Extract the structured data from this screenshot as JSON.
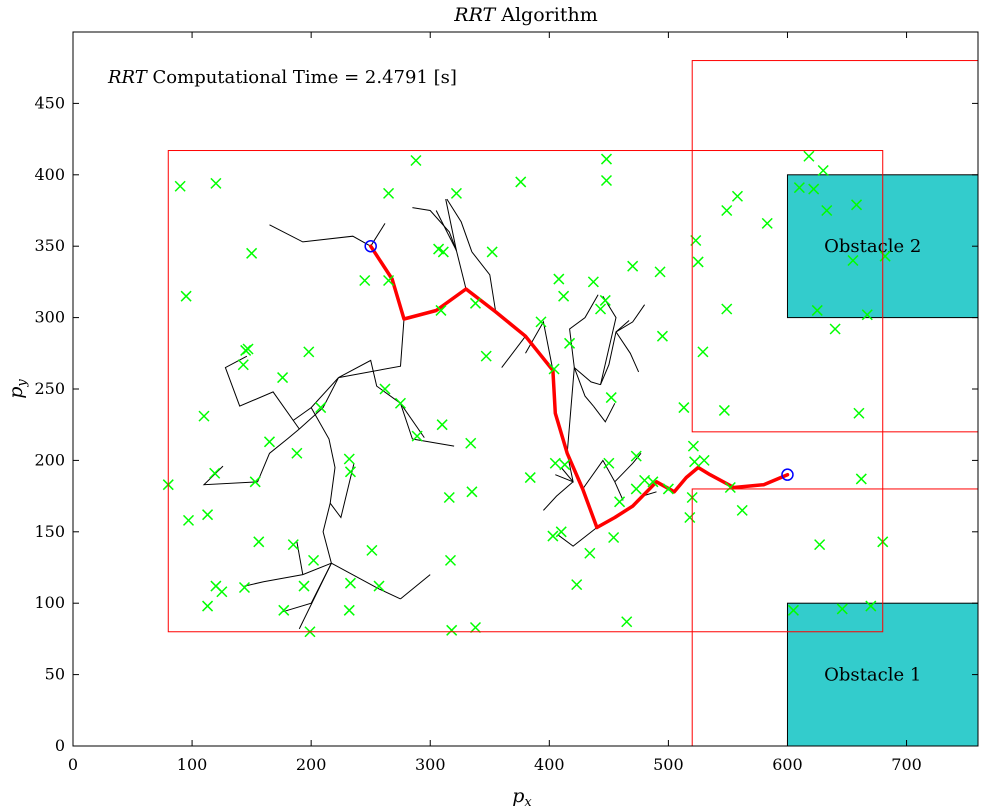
{
  "chart_data": {
    "type": "scatter",
    "title": {
      "italic": "RRT",
      "rest": " Algorithm"
    },
    "annotation": {
      "italic": "RRT",
      "rest": " Computational Time = 2.4791 [s]"
    },
    "xlabel": {
      "main": "p",
      "sub": "x"
    },
    "ylabel": {
      "main": "p",
      "sub": "y"
    },
    "xlim": [
      0,
      760
    ],
    "ylim": [
      0,
      500
    ],
    "xticks": [
      "0",
      "100",
      "200",
      "300",
      "400",
      "500",
      "600",
      "700"
    ],
    "yticks": [
      "0",
      "50",
      "100",
      "150",
      "200",
      "250",
      "300",
      "350",
      "400",
      "450"
    ],
    "grid": false,
    "colors": {
      "tree": "#000000",
      "path": "#ff0000",
      "samples": "#00ff00",
      "regions": "#ff0000",
      "obstacle": "#33cccc",
      "endpoints": "#0000ff"
    },
    "obstacles": [
      {
        "label": "Obstacle 1",
        "x": [
          600,
          760
        ],
        "y": [
          0,
          100
        ]
      },
      {
        "label": "Obstacle 2",
        "x": [
          600,
          760
        ],
        "y": [
          300,
          400
        ]
      }
    ],
    "regions": [
      {
        "x": [
          80,
          680
        ],
        "y": [
          80,
          417
        ]
      },
      {
        "x": [
          520,
          760
        ],
        "y": [
          220,
          480
        ]
      },
      {
        "x": [
          520,
          760
        ],
        "y": [
          0,
          180
        ]
      }
    ],
    "start": [
      600,
      190
    ],
    "goal": [
      250,
      350
    ],
    "path": [
      [
        600,
        190
      ],
      [
        580,
        183
      ],
      [
        555,
        181
      ],
      [
        535,
        190
      ],
      [
        525,
        195
      ],
      [
        515,
        188
      ],
      [
        505,
        178
      ],
      [
        490,
        185
      ],
      [
        470,
        168
      ],
      [
        455,
        160
      ],
      [
        440,
        153
      ],
      [
        428,
        180
      ],
      [
        415,
        205
      ],
      [
        405,
        233
      ],
      [
        403,
        263
      ],
      [
        380,
        287
      ],
      [
        355,
        304
      ],
      [
        330,
        320
      ],
      [
        305,
        305
      ],
      [
        278,
        299
      ],
      [
        268,
        327
      ],
      [
        250,
        350
      ]
    ],
    "tree_edges": [
      [
        [
          250,
          350
        ],
        [
          262,
          366
        ]
      ],
      [
        [
          250,
          350
        ],
        [
          235,
          357
        ],
        [
          193,
          353
        ],
        [
          165,
          365
        ]
      ],
      [
        [
          278,
          299
        ],
        [
          275,
          266
        ],
        [
          223,
          258
        ]
      ],
      [
        [
          223,
          258
        ],
        [
          210,
          237
        ],
        [
          190,
          222
        ],
        [
          180,
          215
        ],
        [
          165,
          205
        ],
        [
          155,
          185
        ],
        [
          110,
          183
        ],
        [
          126,
          196
        ]
      ],
      [
        [
          190,
          222
        ],
        [
          168,
          248
        ],
        [
          140,
          238
        ],
        [
          128,
          265
        ],
        [
          146,
          273
        ]
      ],
      [
        [
          223,
          258
        ],
        [
          200,
          237
        ],
        [
          185,
          228
        ]
      ],
      [
        [
          200,
          237
        ],
        [
          215,
          215
        ],
        [
          220,
          195
        ],
        [
          216,
          170
        ],
        [
          210,
          150
        ],
        [
          217,
          128
        ]
      ],
      [
        [
          216,
          170
        ],
        [
          225,
          160
        ],
        [
          236,
          198
        ]
      ],
      [
        [
          217,
          128
        ],
        [
          193,
          120
        ],
        [
          160,
          115
        ],
        [
          144,
          112
        ]
      ],
      [
        [
          193,
          120
        ],
        [
          188,
          143
        ]
      ],
      [
        [
          217,
          128
        ],
        [
          257,
          110
        ],
        [
          275,
          103
        ]
      ],
      [
        [
          275,
          103
        ],
        [
          300,
          120
        ]
      ],
      [
        [
          217,
          128
        ],
        [
          200,
          100
        ],
        [
          176,
          94
        ]
      ],
      [
        [
          217,
          128
        ],
        [
          190,
          82
        ]
      ],
      [
        [
          330,
          320
        ],
        [
          322,
          347
        ]
      ],
      [
        [
          322,
          347
        ],
        [
          305,
          375
        ]
      ],
      [
        [
          322,
          347
        ],
        [
          316,
          360
        ],
        [
          300,
          375
        ],
        [
          285,
          377
        ]
      ],
      [
        [
          322,
          347
        ],
        [
          313,
          383
        ]
      ],
      [
        [
          355,
          304
        ],
        [
          350,
          330
        ],
        [
          335,
          346
        ]
      ],
      [
        [
          335,
          346
        ],
        [
          326,
          367
        ],
        [
          314,
          383
        ]
      ],
      [
        [
          380,
          287
        ],
        [
          360,
          265
        ]
      ],
      [
        [
          223,
          258
        ],
        [
          250,
          270
        ],
        [
          255,
          252
        ],
        [
          275,
          240
        ],
        [
          285,
          215
        ]
      ],
      [
        [
          275,
          240
        ],
        [
          295,
          216
        ]
      ],
      [
        [
          285,
          215
        ],
        [
          320,
          210
        ]
      ],
      [
        [
          403,
          263
        ],
        [
          395,
          297
        ],
        [
          380,
          275
        ]
      ],
      [
        [
          415,
          205
        ],
        [
          420,
          185
        ],
        [
          405,
          190
        ]
      ],
      [
        [
          420,
          185
        ],
        [
          406,
          175
        ],
        [
          395,
          165
        ]
      ],
      [
        [
          420,
          185
        ],
        [
          410,
          195
        ]
      ],
      [
        [
          440,
          153
        ],
        [
          420,
          140
        ],
        [
          407,
          148
        ]
      ],
      [
        [
          428,
          180
        ],
        [
          445,
          200
        ],
        [
          455,
          185
        ]
      ],
      [
        [
          455,
          185
        ],
        [
          470,
          198
        ],
        [
          477,
          205
        ]
      ],
      [
        [
          455,
          185
        ],
        [
          462,
          172
        ]
      ],
      [
        [
          470,
          168
        ],
        [
          478,
          175
        ],
        [
          490,
          178
        ]
      ],
      [
        [
          415,
          205
        ],
        [
          421,
          265
        ]
      ],
      [
        [
          421,
          265
        ],
        [
          417,
          292
        ],
        [
          430,
          300
        ],
        [
          441,
          316
        ]
      ],
      [
        [
          421,
          265
        ],
        [
          435,
          255
        ],
        [
          443,
          253
        ]
      ],
      [
        [
          443,
          253
        ],
        [
          450,
          267
        ],
        [
          456,
          290
        ],
        [
          467,
          298
        ]
      ],
      [
        [
          443,
          253
        ],
        [
          456,
          300
        ],
        [
          445,
          315
        ]
      ],
      [
        [
          456,
          290
        ],
        [
          470,
          297
        ],
        [
          480,
          309
        ]
      ],
      [
        [
          456,
          290
        ],
        [
          468,
          275
        ],
        [
          475,
          262
        ]
      ],
      [
        [
          421,
          265
        ],
        [
          430,
          245
        ],
        [
          437,
          238
        ]
      ],
      [
        [
          437,
          238
        ],
        [
          447,
          227
        ],
        [
          455,
          240
        ]
      ]
    ],
    "samples": [
      [
        90,
        392
      ],
      [
        120,
        394
      ],
      [
        95,
        315
      ],
      [
        150,
        345
      ],
      [
        110,
        231
      ],
      [
        145,
        277
      ],
      [
        143,
        267
      ],
      [
        147,
        278
      ],
      [
        176,
        258
      ],
      [
        165,
        213
      ],
      [
        119,
        191
      ],
      [
        153,
        185
      ],
      [
        80,
        183
      ],
      [
        97,
        158
      ],
      [
        113,
        162
      ],
      [
        120,
        112
      ],
      [
        113,
        98
      ],
      [
        125,
        108
      ],
      [
        144,
        111
      ],
      [
        156,
        143
      ],
      [
        185,
        141
      ],
      [
        194,
        112
      ],
      [
        177,
        95
      ],
      [
        199,
        80
      ],
      [
        202,
        130
      ],
      [
        232,
        201
      ],
      [
        233,
        192
      ],
      [
        233,
        114
      ],
      [
        232,
        95
      ],
      [
        251,
        137
      ],
      [
        257,
        112
      ],
      [
        208,
        237
      ],
      [
        188,
        205
      ],
      [
        198,
        276
      ],
      [
        288,
        410
      ],
      [
        265,
        387
      ],
      [
        245,
        326
      ],
      [
        265,
        326
      ],
      [
        262,
        250
      ],
      [
        275,
        240
      ],
      [
        289,
        217
      ],
      [
        310,
        225
      ],
      [
        307,
        348
      ],
      [
        311,
        346
      ],
      [
        309,
        305
      ],
      [
        322,
        387
      ],
      [
        338,
        310
      ],
      [
        347,
        273
      ],
      [
        334,
        212
      ],
      [
        335,
        178
      ],
      [
        316,
        174
      ],
      [
        317,
        130
      ],
      [
        318,
        81
      ],
      [
        338,
        83
      ],
      [
        352,
        346
      ],
      [
        376,
        395
      ],
      [
        393,
        297
      ],
      [
        384,
        188
      ],
      [
        408,
        327
      ],
      [
        404,
        264
      ],
      [
        405,
        198
      ],
      [
        403,
        147
      ],
      [
        413,
        197
      ],
      [
        410,
        150
      ],
      [
        412,
        315
      ],
      [
        417,
        282
      ],
      [
        434,
        135
      ],
      [
        423,
        113
      ],
      [
        437,
        325
      ],
      [
        443,
        306
      ],
      [
        447,
        312
      ],
      [
        448,
        411
      ],
      [
        448,
        396
      ],
      [
        450,
        198
      ],
      [
        452,
        244
      ],
      [
        454,
        146
      ],
      [
        465,
        87
      ],
      [
        470,
        336
      ],
      [
        473,
        180
      ],
      [
        480,
        186
      ],
      [
        487,
        185
      ],
      [
        493,
        332
      ],
      [
        495,
        287
      ],
      [
        500,
        180
      ],
      [
        473,
        203
      ],
      [
        459,
        171
      ],
      [
        513,
        237
      ],
      [
        518,
        160
      ],
      [
        520,
        174
      ],
      [
        521,
        210
      ],
      [
        522,
        199
      ],
      [
        523,
        354
      ],
      [
        525,
        339
      ],
      [
        530,
        200
      ],
      [
        529,
        276
      ],
      [
        547,
        235
      ],
      [
        549,
        375
      ],
      [
        549,
        306
      ],
      [
        552,
        181
      ],
      [
        558,
        385
      ],
      [
        562,
        165
      ],
      [
        583,
        366
      ],
      [
        605,
        95
      ],
      [
        610,
        391
      ],
      [
        618,
        413
      ],
      [
        622,
        390
      ],
      [
        627,
        141
      ],
      [
        630,
        403
      ],
      [
        633,
        375
      ],
      [
        625,
        305
      ],
      [
        640,
        292
      ],
      [
        658,
        379
      ],
      [
        655,
        340
      ],
      [
        660,
        233
      ],
      [
        662,
        187
      ],
      [
        667,
        302
      ],
      [
        670,
        98
      ],
      [
        646,
        96
      ],
      [
        680,
        143
      ],
      [
        682,
        343
      ]
    ]
  }
}
